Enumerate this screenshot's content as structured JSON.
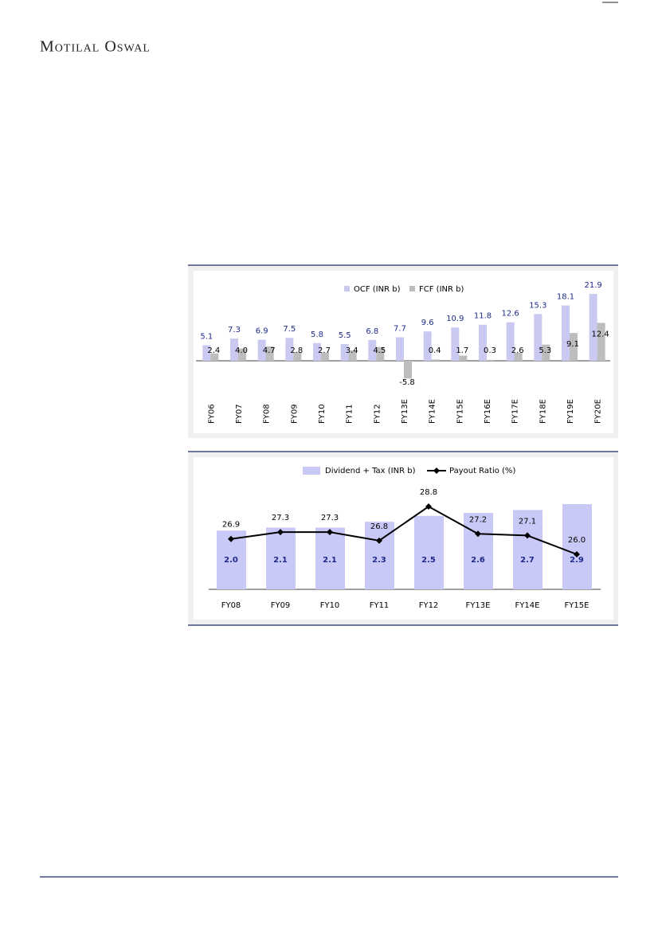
{
  "header": {
    "title": "Motilal Oswal"
  },
  "chart_data": [
    {
      "type": "bar",
      "categories": [
        "FY06",
        "FY07",
        "FY08",
        "FY09",
        "FY10",
        "FY11",
        "FY12",
        "FY13E",
        "FY14E",
        "FY15E",
        "FY16E",
        "FY17E",
        "FY18E",
        "FY19E",
        "FY20E"
      ],
      "series": [
        {
          "name": "OCF (INR b)",
          "color": "#c9c9f2",
          "label_color": "#1f2a8a",
          "values": [
            5.1,
            7.3,
            6.9,
            7.5,
            5.8,
            5.5,
            6.8,
            7.7,
            9.6,
            10.9,
            11.8,
            12.6,
            15.3,
            18.1,
            21.9
          ],
          "value_labels": [
            "5.1",
            "7.3",
            "6.9",
            "7.5",
            "5.8",
            "5.5",
            "6.8",
            "7.7",
            "9.6",
            "10.9",
            "11.8",
            "12.6",
            "15.3",
            "18.1",
            "21.9"
          ]
        },
        {
          "name": "FCF (INR b)",
          "color": "#bdbdbd",
          "label_color": "#000000",
          "values": [
            2.4,
            4.0,
            4.7,
            2.8,
            2.7,
            3.4,
            4.5,
            -5.8,
            0.4,
            1.7,
            0.3,
            2.6,
            5.3,
            9.1,
            12.4
          ],
          "value_labels": [
            "2.4",
            "4.0",
            "4.7",
            "2.8",
            "2.7",
            "3.4",
            "4.5",
            "-5.8",
            "0.4",
            "1.7",
            "0.3",
            "2.6",
            "5.3",
            "9.1",
            "12.4"
          ]
        }
      ]
    },
    {
      "type": "combo",
      "categories": [
        "FY08",
        "FY09",
        "FY10",
        "FY11",
        "FY12",
        "FY13E",
        "FY14E",
        "FY15E"
      ],
      "series": [
        {
          "name": "Dividend + Tax (INR b)",
          "kind": "bar",
          "color": "#c9c9f7",
          "label_color": "#1f2a8a",
          "values": [
            2.0,
            2.1,
            2.1,
            2.3,
            2.5,
            2.6,
            2.7,
            2.9
          ],
          "value_labels": [
            "2.0",
            "2.1",
            "2.1",
            "2.3",
            "2.5",
            "2.6",
            "2.7",
            "2.9"
          ]
        },
        {
          "name": "Payout Ratio (%)",
          "kind": "line",
          "axis": "y2",
          "color": "#000000",
          "label_color": "#000000",
          "values": [
            26.9,
            27.3,
            27.3,
            26.8,
            28.8,
            27.2,
            27.1,
            26.0
          ],
          "value_labels": [
            "26.9",
            "27.3",
            "27.3",
            "26.8",
            "28.8",
            "27.2",
            "27.1",
            "26.0"
          ]
        }
      ]
    }
  ]
}
